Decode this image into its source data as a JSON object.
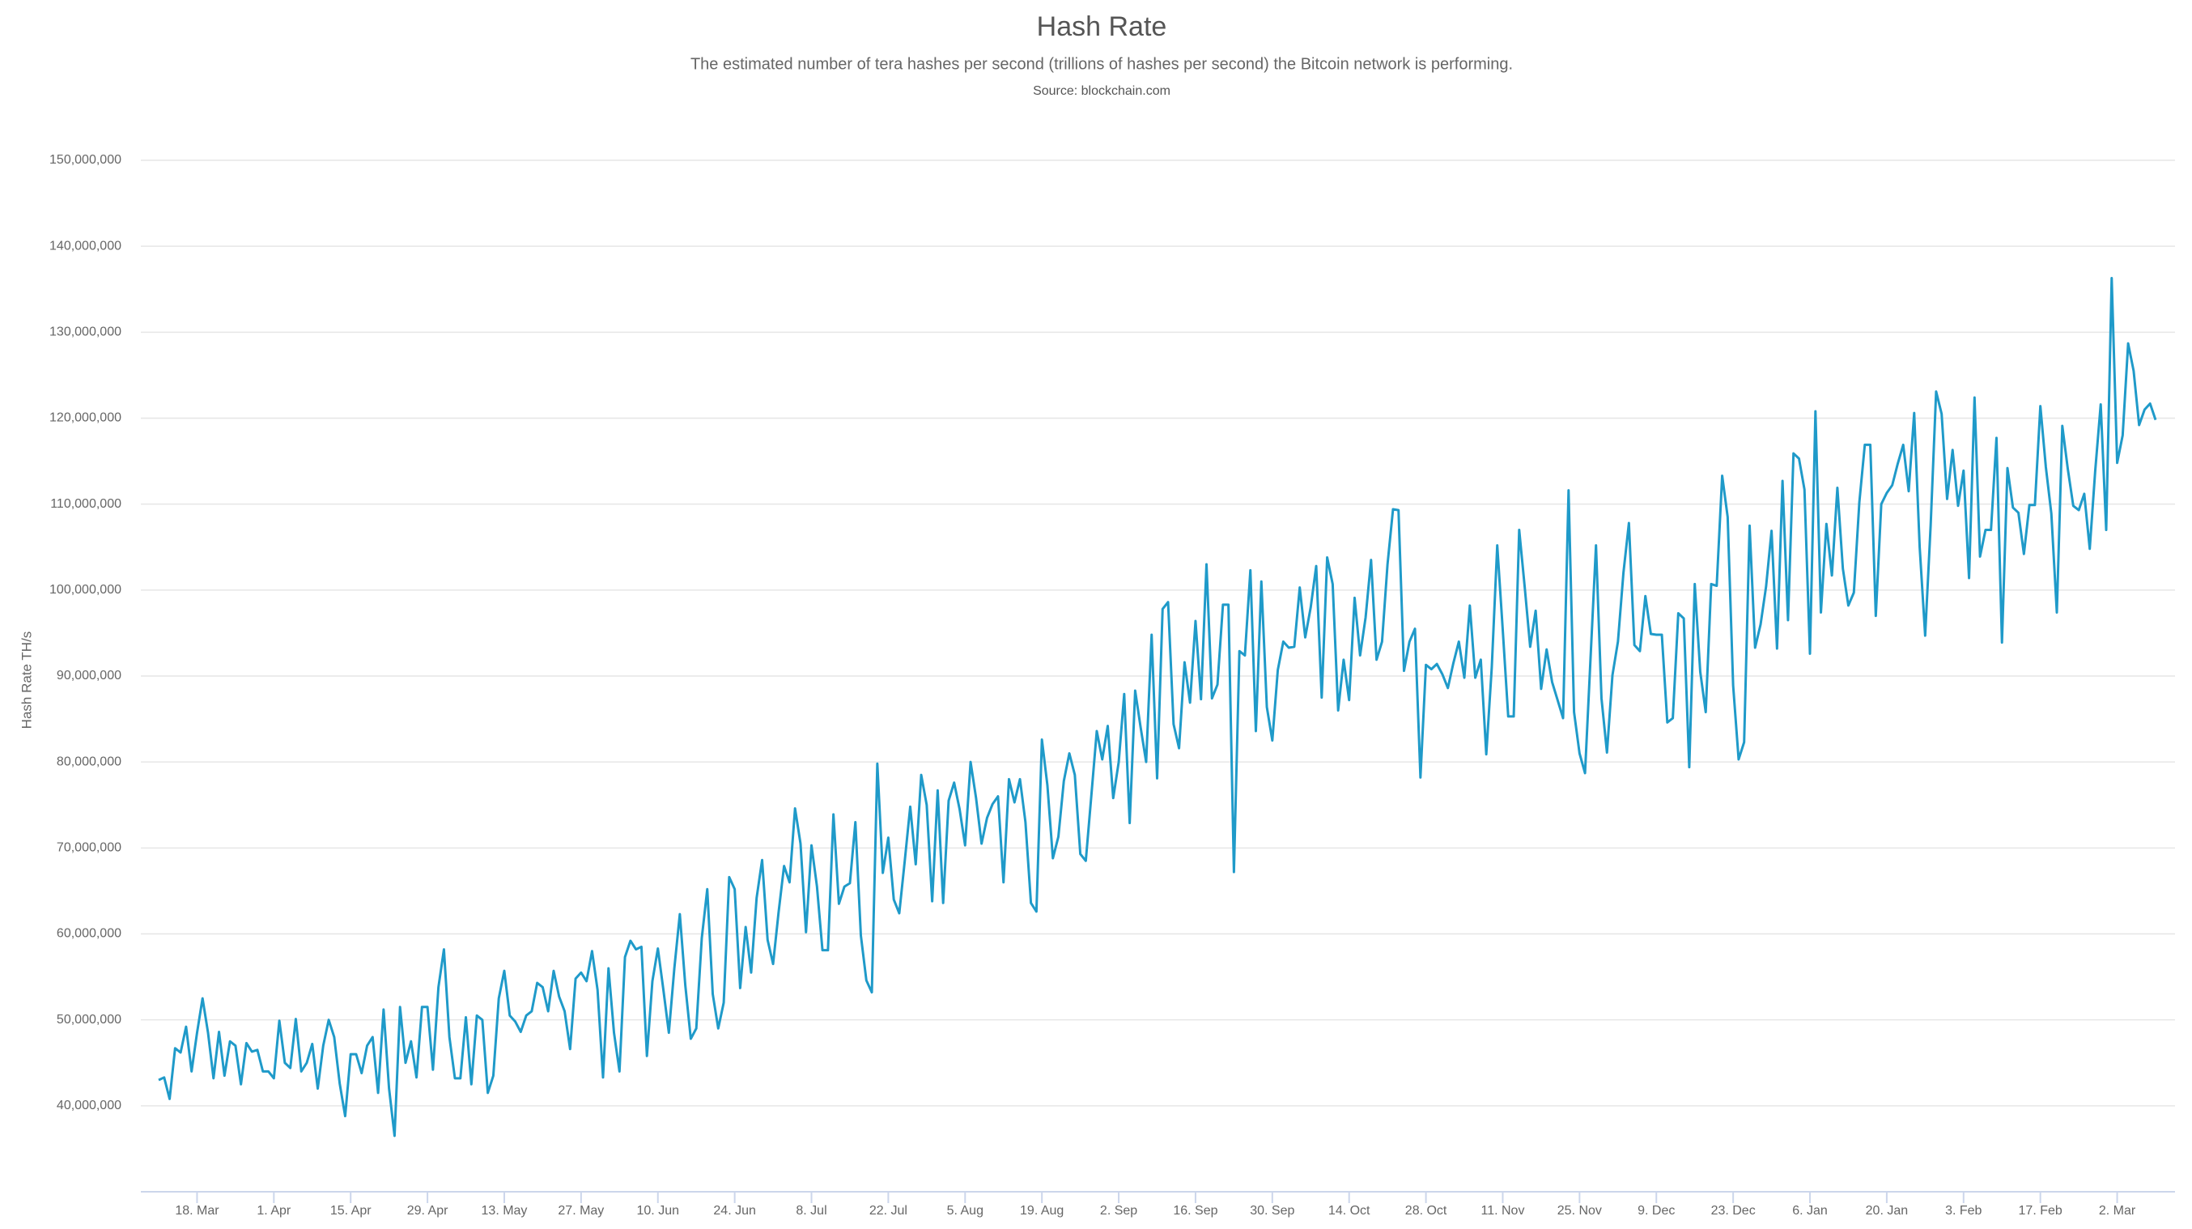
{
  "chart_data": {
    "type": "line",
    "title": "Hash Rate",
    "subtitle": "The estimated number of tera hashes per second (trillions of hashes per second) the Bitcoin network is performing.",
    "source": "Source: blockchain.com",
    "y_label": "Hash Rate TH/s",
    "color": "#1f9ac9",
    "grid": true,
    "ylim": [
      30000000,
      150000000
    ],
    "yticks": [
      {
        "value": 40000000,
        "label": "40,000,000"
      },
      {
        "value": 50000000,
        "label": "50,000,000"
      },
      {
        "value": 60000000,
        "label": "60,000,000"
      },
      {
        "value": 70000000,
        "label": "70,000,000"
      },
      {
        "value": 80000000,
        "label": "80,000,000"
      },
      {
        "value": 90000000,
        "label": "90,000,000"
      },
      {
        "value": 100000000,
        "label": "100,000,000"
      },
      {
        "value": 110000000,
        "label": "110,000,000"
      },
      {
        "value": 120000000,
        "label": "120,000,000"
      },
      {
        "value": 130000000,
        "label": "130,000,000"
      },
      {
        "value": 140000000,
        "label": "140,000,000"
      },
      {
        "value": 150000000,
        "label": "150,000,000"
      }
    ],
    "categories": [
      null,
      null,
      null,
      null,
      null,
      null,
      null,
      "18. Mar",
      null,
      null,
      null,
      null,
      null,
      null,
      null,
      null,
      null,
      null,
      null,
      null,
      null,
      "1. Apr",
      null,
      null,
      null,
      null,
      null,
      null,
      null,
      null,
      null,
      null,
      null,
      null,
      null,
      "15. Apr",
      null,
      null,
      null,
      null,
      null,
      null,
      null,
      null,
      null,
      null,
      null,
      null,
      null,
      "29. Apr",
      null,
      null,
      null,
      null,
      null,
      null,
      null,
      null,
      null,
      null,
      null,
      null,
      null,
      "13. May",
      null,
      null,
      null,
      null,
      null,
      null,
      null,
      null,
      null,
      null,
      null,
      null,
      null,
      "27. May",
      null,
      null,
      null,
      null,
      null,
      null,
      null,
      null,
      null,
      null,
      null,
      null,
      null,
      "10. Jun",
      null,
      null,
      null,
      null,
      null,
      null,
      null,
      null,
      null,
      null,
      null,
      null,
      null,
      "24. Jun",
      null,
      null,
      null,
      null,
      null,
      null,
      null,
      null,
      null,
      null,
      null,
      null,
      null,
      "8. Jul",
      null,
      null,
      null,
      null,
      null,
      null,
      null,
      null,
      null,
      null,
      null,
      null,
      null,
      "22. Jul",
      null,
      null,
      null,
      null,
      null,
      null,
      null,
      null,
      null,
      null,
      null,
      null,
      null,
      "5. Aug",
      null,
      null,
      null,
      null,
      null,
      null,
      null,
      null,
      null,
      null,
      null,
      null,
      null,
      "19. Aug",
      null,
      null,
      null,
      null,
      null,
      null,
      null,
      null,
      null,
      null,
      null,
      null,
      null,
      "2. Sep",
      null,
      null,
      null,
      null,
      null,
      null,
      null,
      null,
      null,
      null,
      null,
      null,
      null,
      "16. Sep",
      null,
      null,
      null,
      null,
      null,
      null,
      null,
      null,
      null,
      null,
      null,
      null,
      null,
      "30. Sep",
      null,
      null,
      null,
      null,
      null,
      null,
      null,
      null,
      null,
      null,
      null,
      null,
      null,
      "14. Oct",
      null,
      null,
      null,
      null,
      null,
      null,
      null,
      null,
      null,
      null,
      null,
      null,
      null,
      "28. Oct",
      null,
      null,
      null,
      null,
      null,
      null,
      null,
      null,
      null,
      null,
      null,
      null,
      null,
      "11. Nov",
      null,
      null,
      null,
      null,
      null,
      null,
      null,
      null,
      null,
      null,
      null,
      null,
      null,
      "25. Nov",
      null,
      null,
      null,
      null,
      null,
      null,
      null,
      null,
      null,
      null,
      null,
      null,
      null,
      "9. Dec",
      null,
      null,
      null,
      null,
      null,
      null,
      null,
      null,
      null,
      null,
      null,
      null,
      null,
      "23. Dec",
      null,
      null,
      null,
      null,
      null,
      null,
      null,
      null,
      null,
      null,
      null,
      null,
      null,
      "6. Jan",
      null,
      null,
      null,
      null,
      null,
      null,
      null,
      null,
      null,
      null,
      null,
      null,
      null,
      "20. Jan",
      null,
      null,
      null,
      null,
      null,
      null,
      null,
      null,
      null,
      null,
      null,
      null,
      null,
      "3. Feb",
      null,
      null,
      null,
      null,
      null,
      null,
      null,
      null,
      null,
      null,
      null,
      null,
      null,
      "17. Feb",
      null,
      null,
      null,
      null,
      null,
      null,
      null,
      null,
      null,
      null,
      null,
      null,
      null,
      "2. Mar",
      null,
      null,
      null,
      null,
      null,
      null,
      null
    ],
    "values": [
      43000000,
      43300000,
      40800000,
      46700000,
      46200000,
      49200000,
      44000000,
      48500000,
      52500000,
      48500000,
      43200000,
      48600000,
      43500000,
      47500000,
      47000000,
      42500000,
      47300000,
      46300000,
      46500000,
      44000000,
      44000000,
      43200000,
      49900000,
      45000000,
      44400000,
      50100000,
      44000000,
      45000000,
      47200000,
      42000000,
      47000000,
      50000000,
      48000000,
      42600000,
      38800000,
      46000000,
      46000000,
      43800000,
      47000000,
      48000000,
      41500000,
      51200000,
      42000000,
      36500000,
      51500000,
      45000000,
      47500000,
      43300000,
      51500000,
      51500000,
      44200000,
      53800000,
      58200000,
      48000000,
      43200000,
      43200000,
      50300000,
      42500000,
      50500000,
      50000000,
      41500000,
      43500000,
      52500000,
      55700000,
      50500000,
      49800000,
      48600000,
      50500000,
      51000000,
      54300000,
      53800000,
      51000000,
      55700000,
      52700000,
      51000000,
      46600000,
      54800000,
      55500000,
      54500000,
      58000000,
      53500000,
      43300000,
      56000000,
      48500000,
      44000000,
      57300000,
      59200000,
      58200000,
      58500000,
      45800000,
      54500000,
      58300000,
      53500000,
      48500000,
      56000000,
      62300000,
      54000000,
      47800000,
      49000000,
      59500000,
      65200000,
      53000000,
      49000000,
      52000000,
      66600000,
      65200000,
      53700000,
      60800000,
      55500000,
      64200000,
      68600000,
      59300000,
      56500000,
      62500000,
      67900000,
      66000000,
      74600000,
      70500000,
      60200000,
      70300000,
      65500000,
      58100000,
      58100000,
      73900000,
      63500000,
      65500000,
      65900000,
      73000000,
      59800000,
      54600000,
      53200000,
      79800000,
      67100000,
      71200000,
      64000000,
      62400000,
      68500000,
      74800000,
      68100000,
      78500000,
      75000000,
      63800000,
      76700000,
      63600000,
      75500000,
      77600000,
      74500000,
      70300000,
      80000000,
      75800000,
      70500000,
      73500000,
      75100000,
      76000000,
      66000000,
      78000000,
      75300000,
      78000000,
      73000000,
      63600000,
      62600000,
      82600000,
      77300000,
      68800000,
      71300000,
      77800000,
      81000000,
      78500000,
      69300000,
      68500000,
      76000000,
      83600000,
      80300000,
      84200000,
      75800000,
      80000000,
      87900000,
      72900000,
      88300000,
      84000000,
      80000000,
      94800000,
      78100000,
      97800000,
      98600000,
      84400000,
      81600000,
      91600000,
      86900000,
      96400000,
      87300000,
      103000000,
      87400000,
      89000000,
      98300000,
      98300000,
      67200000,
      92900000,
      92400000,
      102300000,
      83600000,
      101000000,
      86400000,
      82500000,
      90700000,
      94000000,
      93300000,
      93400000,
      100300000,
      94500000,
      98000000,
      102800000,
      87500000,
      103800000,
      100700000,
      86000000,
      91900000,
      87200000,
      99100000,
      92400000,
      96800000,
      103500000,
      91900000,
      94000000,
      103000000,
      109400000,
      109300000,
      90600000,
      94000000,
      95500000,
      78200000,
      91300000,
      90800000,
      91400000,
      90200000,
      88600000,
      91500000,
      94000000,
      89800000,
      98200000,
      89800000,
      91900000,
      80900000,
      91000000,
      105200000,
      95400000,
      85300000,
      85300000,
      107000000,
      100400000,
      93400000,
      97600000,
      88500000,
      93100000,
      89300000,
      87200000,
      85100000,
      111600000,
      85800000,
      81000000,
      78700000,
      92000000,
      105200000,
      87400000,
      81100000,
      90100000,
      94000000,
      102000000,
      107800000,
      93600000,
      92900000,
      99300000,
      94900000,
      94800000,
      94800000,
      84600000,
      85100000,
      97300000,
      96700000,
      79400000,
      100700000,
      90500000,
      85800000,
      100700000,
      100500000,
      113300000,
      108500000,
      88900000,
      80300000,
      82300000,
      107500000,
      93300000,
      96000000,
      100400000,
      106900000,
      93200000,
      112700000,
      96500000,
      115900000,
      115300000,
      111700000,
      92600000,
      120800000,
      97400000,
      107700000,
      101700000,
      111900000,
      102500000,
      98200000,
      99700000,
      110200000,
      116900000,
      116900000,
      97000000,
      110000000,
      111300000,
      112200000,
      114700000,
      116900000,
      111500000,
      120600000,
      105000000,
      94700000,
      107500000,
      123100000,
      120500000,
      110600000,
      116300000,
      109800000,
      113900000,
      101400000,
      122400000,
      103900000,
      107000000,
      107000000,
      117700000,
      93900000,
      114200000,
      109600000,
      109000000,
      104200000,
      109900000,
      109900000,
      121400000,
      114300000,
      108900000,
      97400000,
      119100000,
      114100000,
      109800000,
      109300000,
      111200000,
      104800000,
      113900000,
      121600000,
      107000000,
      136300000,
      114800000,
      118000000,
      128700000,
      125500000,
      119200000,
      121000000,
      121700000,
      119800000
    ]
  }
}
